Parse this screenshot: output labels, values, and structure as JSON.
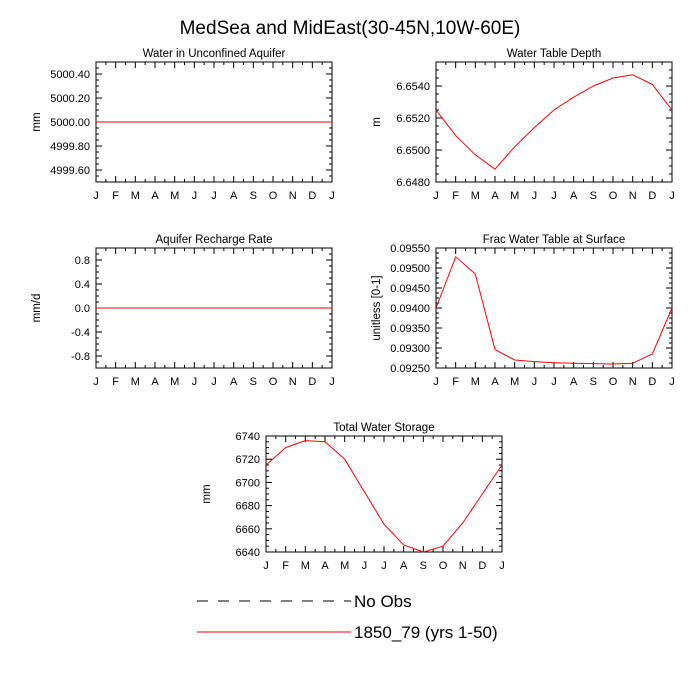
{
  "page_title": "MedSea and MidEast(30-45N,10W-60E)",
  "legend": {
    "entries": [
      {
        "label": "No Obs",
        "style": "dashed",
        "color": "#000000"
      },
      {
        "label": "1850_79 (yrs 1-50)",
        "style": "solid",
        "color": "#ff0000"
      }
    ]
  },
  "chart_data": [
    {
      "type": "line",
      "title": "Water in Unconfined Aquifer",
      "ylabel": "mm",
      "xlabel": "",
      "categories": [
        "J",
        "F",
        "M",
        "A",
        "M",
        "J",
        "J",
        "A",
        "S",
        "O",
        "N",
        "D",
        "J"
      ],
      "ylim": [
        4999.5,
        5000.5
      ],
      "yticks": [
        4999.6,
        4999.8,
        5000.0,
        5000.2,
        5000.4
      ],
      "yticklabels": [
        "4999.60",
        "4999.80",
        "5000.00",
        "5000.20",
        "5000.40"
      ],
      "series": [
        {
          "name": "1850_79 (yrs 1-50)",
          "color": "#ff0000",
          "values": [
            5000,
            5000,
            5000,
            5000,
            5000,
            5000,
            5000,
            5000,
            5000,
            5000,
            5000,
            5000,
            5000
          ]
        }
      ]
    },
    {
      "type": "line",
      "title": "Water Table Depth",
      "ylabel": "m",
      "xlabel": "",
      "categories": [
        "J",
        "F",
        "M",
        "A",
        "M",
        "J",
        "J",
        "A",
        "S",
        "O",
        "N",
        "D",
        "J"
      ],
      "ylim": [
        6.648,
        6.6555
      ],
      "yticks": [
        6.648,
        6.65,
        6.652,
        6.654
      ],
      "yticklabels": [
        "6.6480",
        "6.6500",
        "6.6520",
        "6.6540"
      ],
      "series": [
        {
          "name": "1850_79 (yrs 1-50)",
          "color": "#ff0000",
          "values": [
            6.6525,
            6.6509,
            6.6497,
            6.6488,
            6.6502,
            6.6514,
            6.6525,
            6.6533,
            6.654,
            6.6545,
            6.6547,
            6.6541,
            6.6525
          ]
        }
      ]
    },
    {
      "type": "line",
      "title": "Aquifer Recharge Rate",
      "ylabel": "mm/d",
      "xlabel": "",
      "categories": [
        "J",
        "F",
        "M",
        "A",
        "M",
        "J",
        "J",
        "A",
        "S",
        "O",
        "N",
        "D",
        "J"
      ],
      "ylim": [
        -1.0,
        1.0
      ],
      "yticks": [
        -0.8,
        -0.4,
        0.0,
        0.4,
        0.8
      ],
      "yticklabels": [
        "-0.8",
        "-0.4",
        "0.0",
        "0.4",
        "0.8"
      ],
      "series": [
        {
          "name": "1850_79 (yrs 1-50)",
          "color": "#ff0000",
          "values": [
            0,
            0,
            0,
            0,
            0,
            0,
            0,
            0,
            0,
            0,
            0,
            0,
            0
          ]
        }
      ]
    },
    {
      "type": "line",
      "title": "Frac Water Table at Surface",
      "ylabel": "unitless [0-1]",
      "xlabel": "",
      "categories": [
        "J",
        "F",
        "M",
        "A",
        "M",
        "J",
        "J",
        "A",
        "S",
        "O",
        "N",
        "D",
        "J"
      ],
      "ylim": [
        0.0925,
        0.0955
      ],
      "yticks": [
        0.0925,
        0.093,
        0.0935,
        0.094,
        0.0945,
        0.095,
        0.0955
      ],
      "yticklabels": [
        "0.09250",
        "0.09300",
        "0.09350",
        "0.09400",
        "0.09450",
        "0.09500",
        "0.09550"
      ],
      "series": [
        {
          "name": "1850_79 (yrs 1-50)",
          "color": "#ff0000",
          "values": [
            0.094,
            0.09528,
            0.09485,
            0.09296,
            0.0927,
            0.09266,
            0.09263,
            0.09262,
            0.09261,
            0.0926,
            0.09262,
            0.09285,
            0.094
          ]
        }
      ]
    },
    {
      "type": "line",
      "title": "Total Water Storage",
      "ylabel": "mm",
      "xlabel": "",
      "categories": [
        "J",
        "F",
        "M",
        "A",
        "M",
        "J",
        "J",
        "A",
        "S",
        "O",
        "N",
        "D",
        "J"
      ],
      "ylim": [
        6640,
        6740
      ],
      "yticks": [
        6640,
        6660,
        6680,
        6700,
        6720,
        6740
      ],
      "yticklabels": [
        "6640",
        "6660",
        "6680",
        "6700",
        "6720",
        "6740"
      ],
      "series": [
        {
          "name": "1850_79 (yrs 1-50)",
          "color": "#ff0000",
          "values": [
            6715,
            6730,
            6736,
            6735,
            6720,
            6692,
            6664,
            6646,
            6640,
            6645,
            6665,
            6690,
            6715
          ]
        }
      ]
    }
  ]
}
